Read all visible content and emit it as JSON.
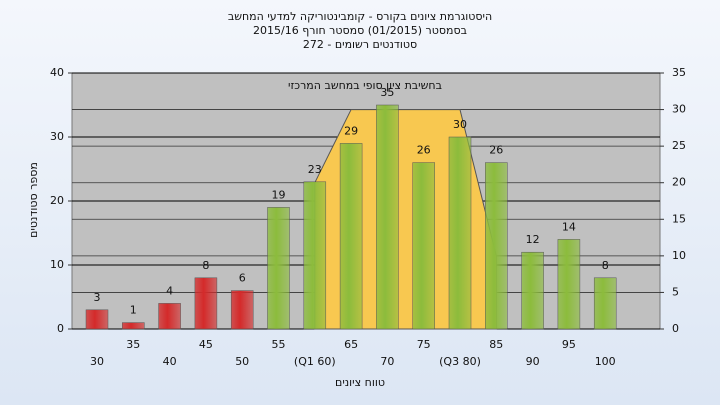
{
  "chart_data": {
    "type": "bar",
    "title": "היסטוגרמת ציונים בקורס - קומבינטוריקה למדעי המחשב",
    "subtitle": "בסמסטר  (01/2015)  סמסטר חורף  2015/16",
    "subtitle2": "סטודנטים רשומים - 272",
    "annotation": "בחשיבת ציון סופי במחשב המרכזי",
    "xlabel": "טווח ציונים",
    "ylabel": "מספר סטודנטים",
    "categories": [
      "30",
      "35",
      "40",
      "45",
      "50",
      "55",
      "(Q1 60)",
      "65",
      "70",
      "75",
      "(Q3 80)",
      "85",
      "90",
      "95",
      "100"
    ],
    "values": [
      3,
      1,
      4,
      8,
      6,
      19,
      23,
      29,
      35,
      26,
      30,
      26,
      12,
      14,
      8
    ],
    "colors": [
      "#d42a2a",
      "#d42a2a",
      "#d42a2a",
      "#d42a2a",
      "#d42a2a",
      "#8cbc3c",
      "#8cbc3c",
      "#8cbc3c",
      "#8cbc3c",
      "#8cbc3c",
      "#8cbc3c",
      "#8cbc3c",
      "#8cbc3c",
      "#8cbc3c",
      "#8cbc3c"
    ],
    "area": {
      "type": "area",
      "axis": "y2",
      "color": "#f8c850",
      "values": [
        null,
        null,
        null,
        null,
        null,
        null,
        20,
        30,
        30,
        30,
        30,
        10,
        null,
        null,
        null
      ]
    },
    "ylim": [
      0,
      40
    ],
    "yticks": [
      0,
      10,
      20,
      30,
      40
    ],
    "y2lim": [
      0,
      35
    ],
    "y2ticks": [
      0,
      5,
      10,
      15,
      20,
      25,
      30,
      35
    ],
    "grid": true
  }
}
